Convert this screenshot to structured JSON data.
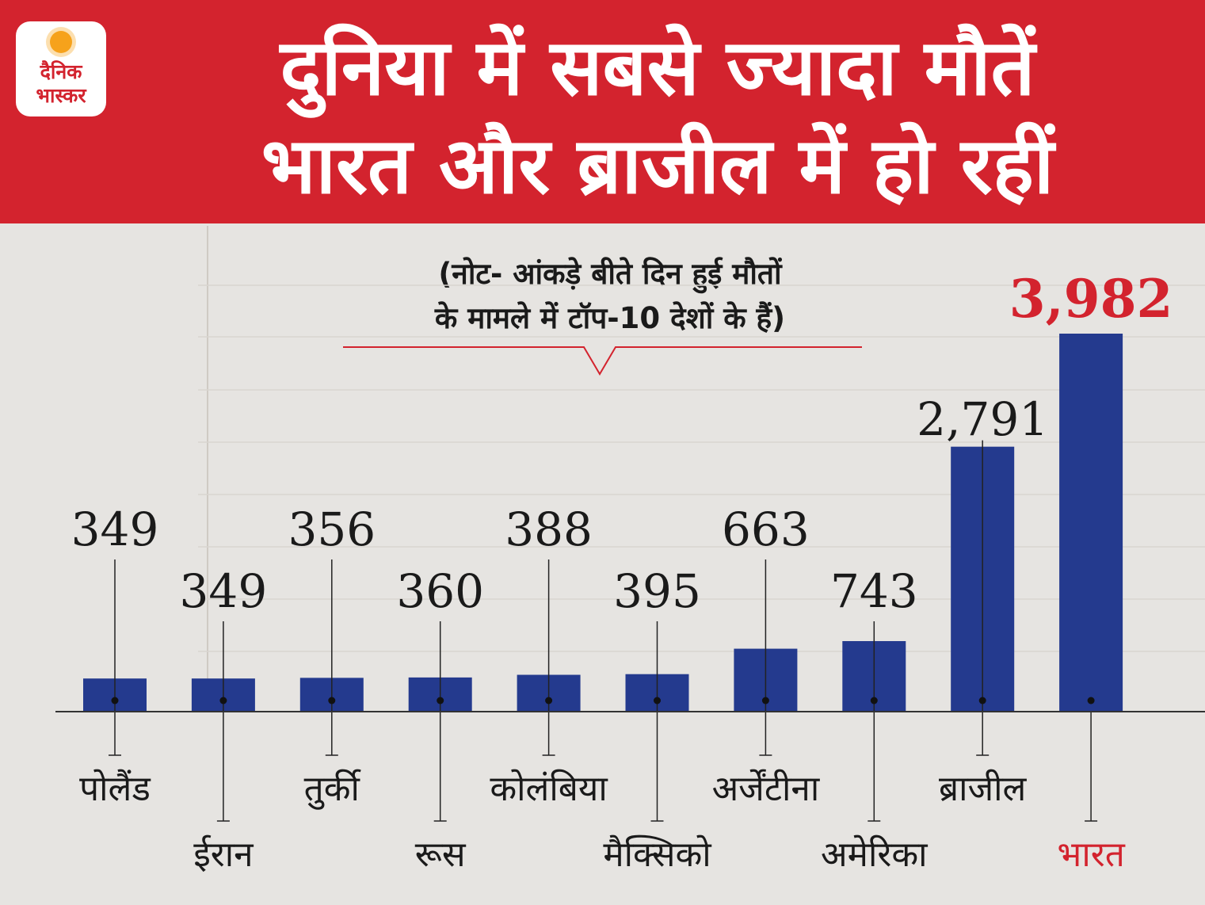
{
  "header": {
    "logo_line1": "दैनिक",
    "logo_line2": "भास्कर",
    "title_line1": "दुनिया में सबसे ज्यादा मौतें",
    "title_line2": "भारत और ब्राजील में हो रहीं"
  },
  "note": {
    "line1": "(नोट- आंकड़े बीते दिन हुई मौतों",
    "line2": "के मामले में टॉप-10 देशों के हैं)"
  },
  "colors": {
    "header_bg": "#d3232e",
    "bar": "#243a8e",
    "highlight": "#d3232e",
    "text": "#1a1a1a"
  },
  "chart_data": {
    "type": "bar",
    "categories": [
      "पोलैंड",
      "ईरान",
      "तुर्की",
      "रूस",
      "कोलंबिया",
      "मैक्सिको",
      "अर्जेंटीना",
      "अमेरिका",
      "ब्राजील",
      "भारत"
    ],
    "values": [
      349,
      349,
      356,
      360,
      388,
      395,
      663,
      743,
      2791,
      3982
    ],
    "value_labels": [
      "349",
      "349",
      "356",
      "360",
      "388",
      "395",
      "663",
      "743",
      "2,791",
      "3,982"
    ],
    "highlight_index": 9,
    "ylim": [
      0,
      3982
    ]
  }
}
